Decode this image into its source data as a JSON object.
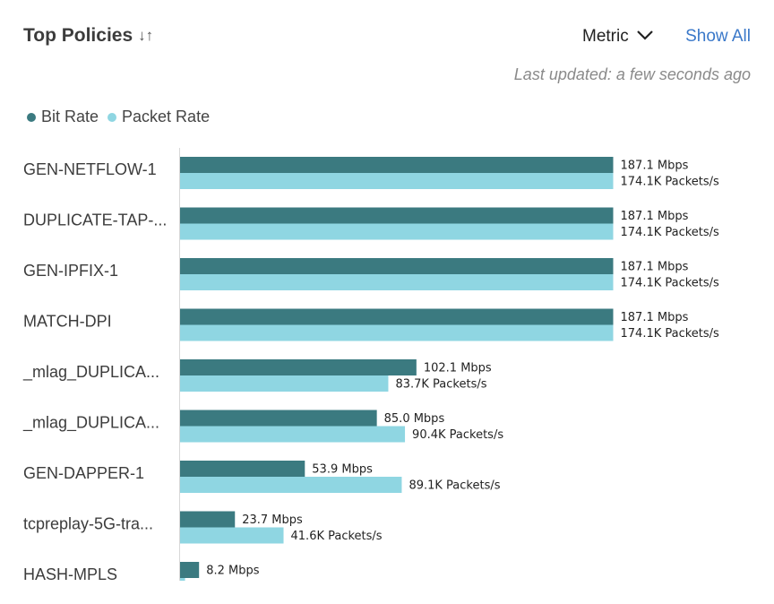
{
  "header": {
    "title": "Top Policies",
    "sort_icon": "sort-arrows-icon",
    "metric_label": "Metric",
    "show_all_label": "Show All",
    "last_updated": "Last updated: a few seconds ago"
  },
  "colors": {
    "bit_rate": "#3b7a80",
    "packet_rate": "#8fd6e2",
    "link": "#3a78c9"
  },
  "chart_data": {
    "type": "bar",
    "orientation": "horizontal",
    "legend": [
      "Bit Rate",
      "Packet Rate"
    ],
    "legend_position": "top-left",
    "categories": [
      "GEN-NETFLOW-1",
      "DUPLICATE-TAP-...",
      "GEN-IPFIX-1",
      "MATCH-DPI",
      "_mlag_DUPLICA...",
      "_mlag_DUPLICA...",
      "GEN-DAPPER-1",
      "tcpreplay-5G-tra...",
      "HASH-MPLS"
    ],
    "series": [
      {
        "name": "Bit Rate",
        "unit": "Mbps",
        "values": [
          187.1,
          187.1,
          187.1,
          187.1,
          102.1,
          85.0,
          53.9,
          23.7,
          8.2
        ],
        "labels": [
          "187.1 Mbps",
          "187.1 Mbps",
          "187.1 Mbps",
          "187.1 Mbps",
          "102.1 Mbps",
          "85.0 Mbps",
          "53.9 Mbps",
          "23.7 Mbps",
          "8.2 Mbps"
        ]
      },
      {
        "name": "Packet Rate",
        "unit": "K Packets/s",
        "values": [
          174.1,
          174.1,
          174.1,
          174.1,
          83.7,
          90.4,
          89.1,
          41.6,
          2.0
        ],
        "labels": [
          "174.1K Packets/s",
          "174.1K Packets/s",
          "174.1K Packets/s",
          "174.1K Packets/s",
          "83.7K Packets/s",
          "90.4K Packets/s",
          "89.1K Packets/s",
          "41.6K Packets/s",
          ""
        ]
      }
    ]
  }
}
